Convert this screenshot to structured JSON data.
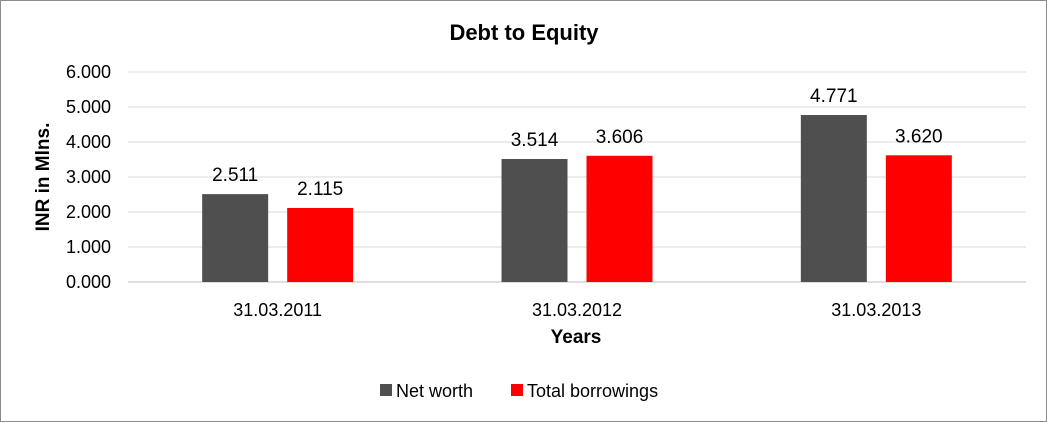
{
  "colors": {
    "net_worth": "#4f4f4f",
    "total_borrowings": "#ff0000",
    "grid": "#d9d9d9",
    "axis": "#bfbfbf"
  },
  "chart_data": {
    "type": "bar",
    "title": "Debt to Equity",
    "xlabel": "Years",
    "ylabel": "INR in Mlns.",
    "categories": [
      "31.03.2011",
      "31.03.2012",
      "31.03.2013"
    ],
    "series": [
      {
        "name": "Net worth",
        "values": [
          2.511,
          3.514,
          4.771
        ],
        "labels": [
          "2.511",
          "3.514",
          "4.771"
        ]
      },
      {
        "name": "Total borrowings",
        "values": [
          2.115,
          3.606,
          3.62
        ],
        "labels": [
          "2.115",
          "3.606",
          "3.620"
        ]
      }
    ],
    "ylim": [
      0,
      6
    ],
    "yticks": [
      "0.000",
      "1.000",
      "2.000",
      "3.000",
      "4.000",
      "5.000",
      "6.000"
    ],
    "grid": true,
    "legend_position": "bottom"
  }
}
